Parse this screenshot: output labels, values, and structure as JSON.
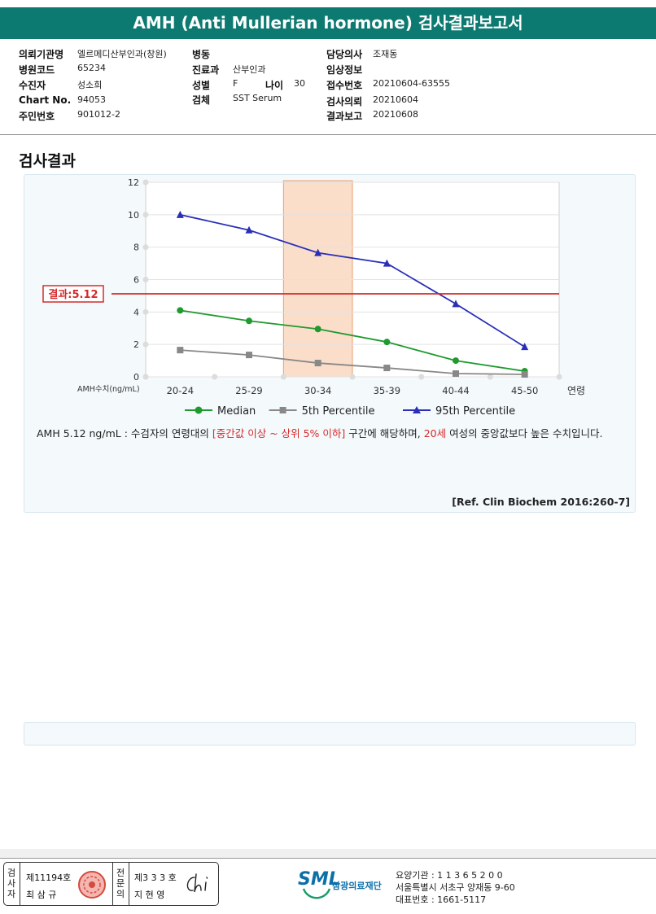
{
  "title": "AMH (Anti Mullerian hormone) 검사결과보고서",
  "info": {
    "col1": [
      {
        "label": "의뢰기관명",
        "value": "엘르메디산부인과(창원)"
      },
      {
        "label": "병원코드",
        "value": "65234"
      },
      {
        "label": "수진자",
        "value": "성소희"
      },
      {
        "label": "Chart No.",
        "value": "94053"
      },
      {
        "label": "주민번호",
        "value": "901012-2"
      }
    ],
    "col2": [
      {
        "label": "병동",
        "value": ""
      },
      {
        "label": "진료과",
        "value": "산부인과"
      },
      {
        "label": "성별",
        "value": "F"
      },
      {
        "label": "검체",
        "value": "SST Serum"
      }
    ],
    "age": {
      "label": "나이",
      "value": "30"
    },
    "col3": [
      {
        "label": "담당의사",
        "value": "조재동"
      },
      {
        "label": "임상정보",
        "value": ""
      },
      {
        "label": "접수번호",
        "value": "20210604-63555"
      },
      {
        "label": "검사의뢰",
        "value": "20210604"
      },
      {
        "label": "결과보고",
        "value": "20210608"
      }
    ]
  },
  "section_title": "검사결과",
  "chart_data": {
    "type": "line",
    "categories": [
      "20-24",
      "25-29",
      "30-34",
      "35-39",
      "40-44",
      "45-50"
    ],
    "x_axis_label_right": "연령",
    "y_axis_label": "AMH수치(ng/mL)",
    "ylim": [
      0,
      12
    ],
    "yticks": [
      0,
      2,
      4,
      6,
      8,
      10,
      12
    ],
    "series": [
      {
        "name": "Median",
        "color": "#1f9a2e",
        "marker": "circle",
        "values": [
          4.1,
          3.45,
          2.95,
          2.15,
          1.0,
          0.35
        ]
      },
      {
        "name": "5th Percentile",
        "color": "#888888",
        "marker": "square",
        "values": [
          1.65,
          1.35,
          0.85,
          0.55,
          0.2,
          0.15
        ]
      },
      {
        "name": "95th Percentile",
        "color": "#2a2fb8",
        "marker": "triangle",
        "values": [
          10.0,
          9.05,
          7.65,
          7.0,
          4.5,
          1.85
        ]
      }
    ],
    "result_line": {
      "label": "결과:5.12",
      "value": 5.12,
      "color": "#d42a2a"
    },
    "highlight_category": "30-34",
    "highlight_color": "#f8d3b8",
    "grid": true,
    "legend_position": "bottom"
  },
  "comment": {
    "part1": "AMH  5.12 ng/mL : 수검자의 연령대의 ",
    "highlight1": "[중간값 이상 ~ 상위 5% 이하]",
    "part2": " 구간에 해당하며, ",
    "highlight2": "20세",
    "part3": " 여성의 중앙값보다 높은 수치입니다."
  },
  "reference": "[Ref. Clin Biochem 2016:260-7]",
  "footer": {
    "tester_label": "검사자",
    "tester_no": "제11194호",
    "tester_name": "최 삼 규",
    "specialist_label": "전문의",
    "specialist_no": "제3 3 3 호",
    "specialist_name": "지 현 영",
    "logo_text": "SML",
    "logo_name": "삼광의료재단",
    "addr_line1": "요양기관 : 1 1 3 6 5 2 0 0",
    "addr_line2": "서울특별시 서초구 양재동 9-60",
    "addr_line3": "대표번호 : 1661-5117"
  }
}
